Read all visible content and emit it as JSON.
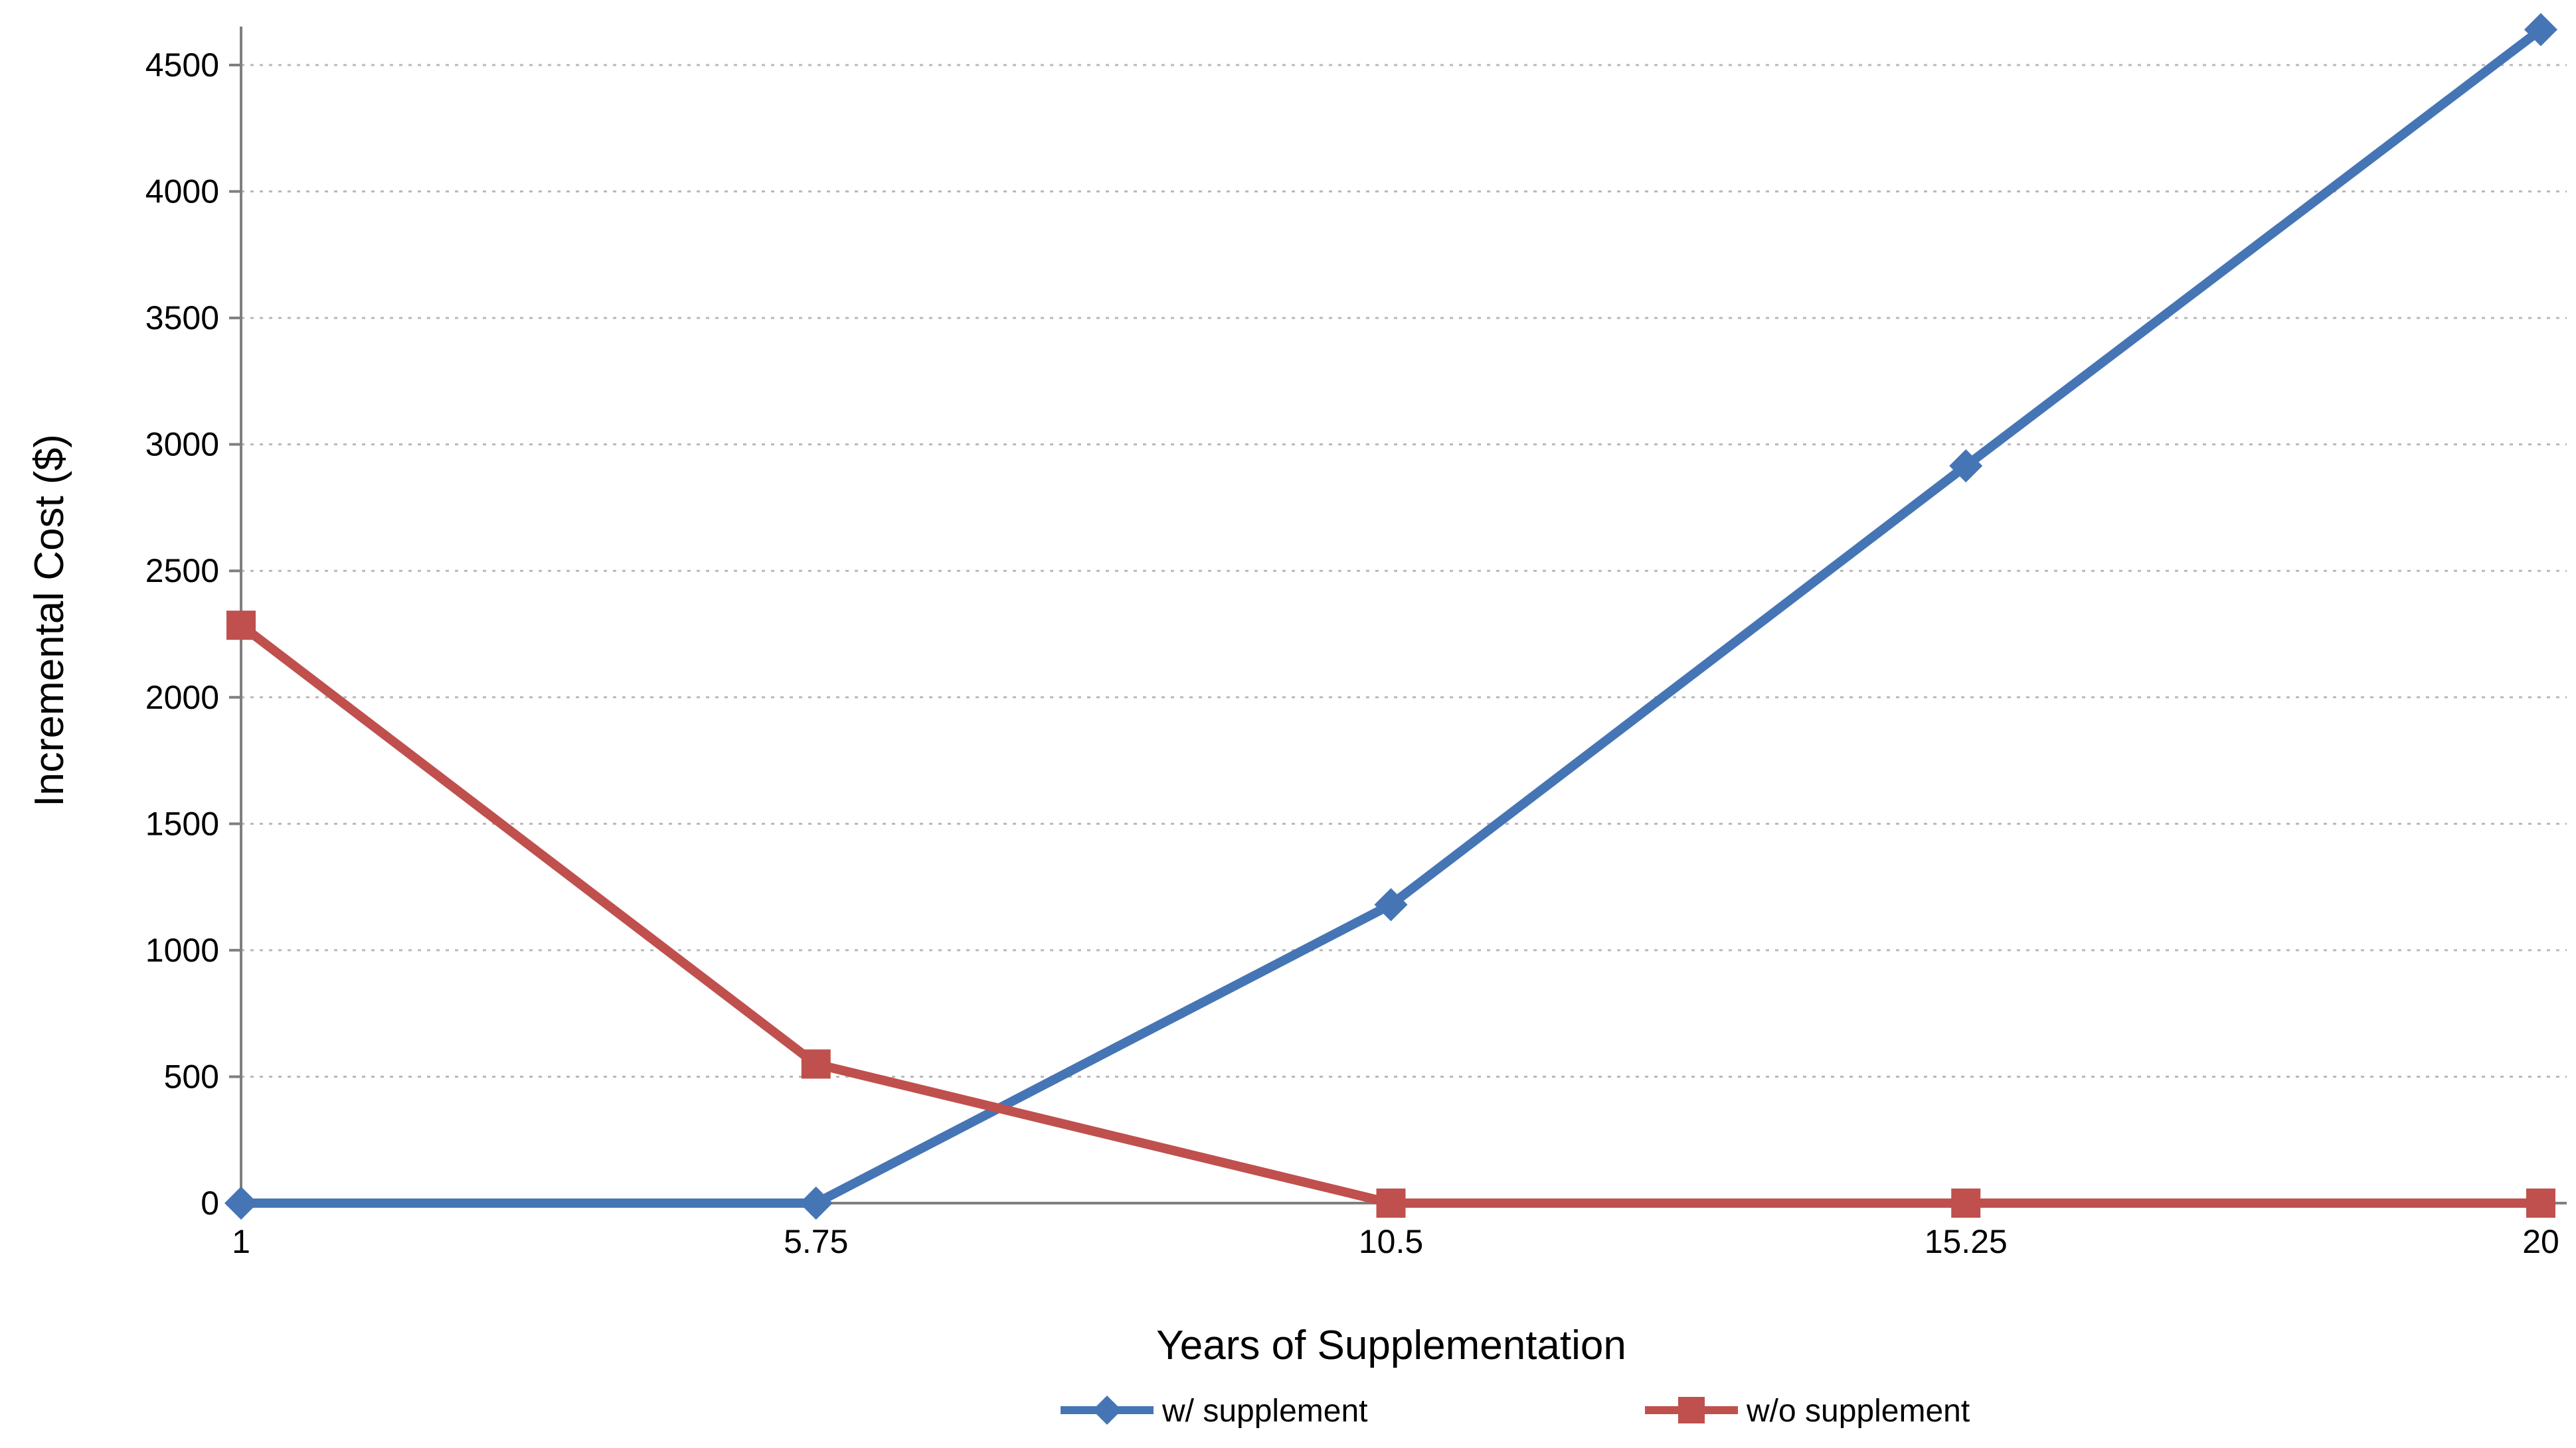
{
  "figure": {
    "background": "#ffffff"
  },
  "chart_data": {
    "type": "line",
    "title": "",
    "xlabel": "Years of Supplementation",
    "ylabel": "Incremental Cost ($)",
    "x": [
      1,
      5.75,
      10.5,
      15.25,
      20
    ],
    "x_tick_labels": [
      "1",
      "5.75",
      "10.5",
      "15.25",
      "20"
    ],
    "series": [
      {
        "name": "w/ supplement",
        "marker": "diamond",
        "color": "#4575b5",
        "values": [
          0,
          0,
          1180,
          2915,
          4640
        ]
      },
      {
        "name": "w/o supplement",
        "marker": "square",
        "color": "#c0504d",
        "values": [
          2285,
          550,
          0,
          0,
          0
        ]
      }
    ],
    "xlim": [
      1,
      20
    ],
    "ylim": [
      0,
      4500
    ],
    "ytick_step": 500,
    "ytick_labels": [
      "0",
      "500",
      "1000",
      "1500",
      "2000",
      "2500",
      "3000",
      "3500",
      "4000",
      "4500"
    ],
    "grid": "horizontal-dotted",
    "legend_position": "bottom-center"
  },
  "style": {
    "gridline_color": "#b9b9b9",
    "axis_color": "#7f7f7f",
    "tick_color": "#7f7f7f",
    "text_color": "#000000"
  }
}
